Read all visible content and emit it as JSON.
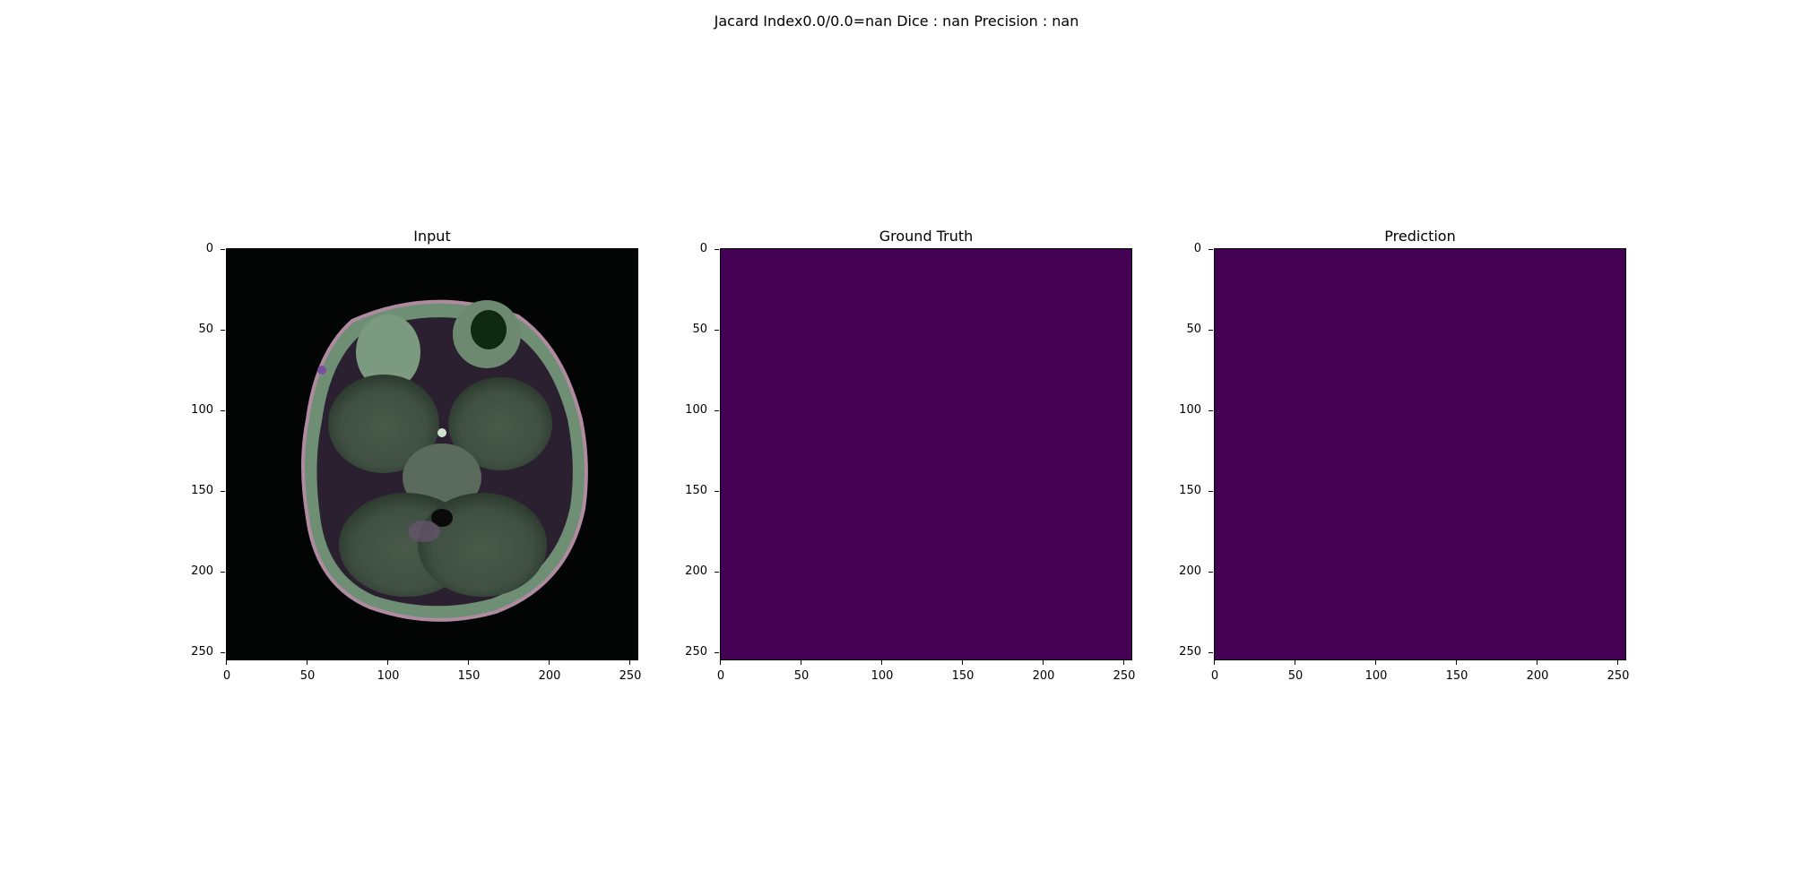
{
  "suptitle": "Jacard Index0.0/0.0=nan Dice : nan Precision : nan",
  "chart_data": [
    {
      "type": "heatmap",
      "title": "Input",
      "content": "RGB MRI brain slice (axial)",
      "xlim": [
        0,
        256
      ],
      "ylim": [
        256,
        0
      ],
      "xticks": [
        "0",
        "50",
        "100",
        "150",
        "200",
        "250"
      ],
      "yticks": [
        "0",
        "50",
        "100",
        "150",
        "200",
        "250"
      ]
    },
    {
      "type": "heatmap",
      "title": "Ground Truth",
      "content": "mask, all zeros (uniform viridis minimum)",
      "fill_color": "#440154",
      "xlim": [
        0,
        256
      ],
      "ylim": [
        256,
        0
      ],
      "xticks": [
        "0",
        "50",
        "100",
        "150",
        "200",
        "250"
      ],
      "yticks": [
        "0",
        "50",
        "100",
        "150",
        "200",
        "250"
      ]
    },
    {
      "type": "heatmap",
      "title": "Prediction",
      "content": "mask, all zeros (uniform viridis minimum)",
      "fill_color": "#440154",
      "xlim": [
        0,
        256
      ],
      "ylim": [
        256,
        0
      ],
      "xticks": [
        "0",
        "50",
        "100",
        "150",
        "200",
        "250"
      ],
      "yticks": [
        "0",
        "50",
        "100",
        "150",
        "200",
        "250"
      ]
    }
  ]
}
